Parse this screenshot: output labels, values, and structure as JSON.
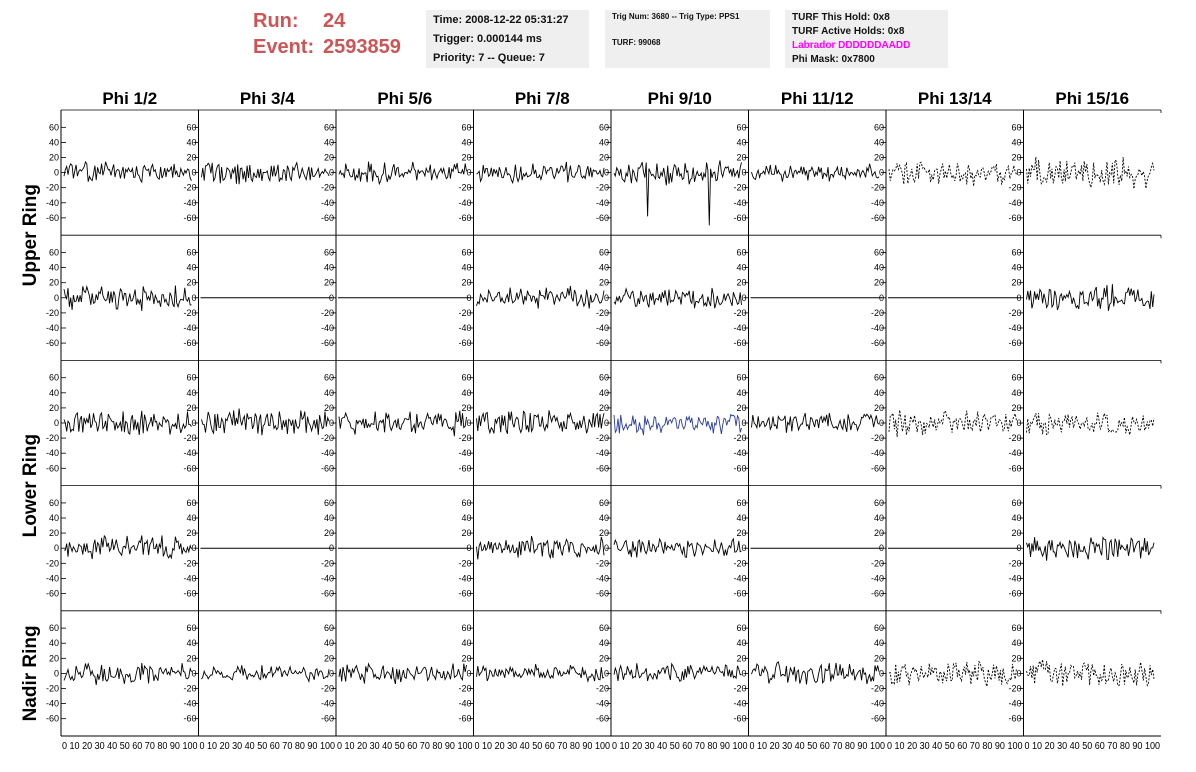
{
  "header": {
    "run_label": "Run:",
    "run_value": "24",
    "event_label": "Event:",
    "event_value": "2593859",
    "time": "Time: 2008-12-22 05:31:27",
    "trigger": "Trigger: 0.000144 ms",
    "priority": "Priority: 7 -- Queue: 7",
    "trig_num": "Trig Num: 3680 -- Trig Type: PPS1",
    "turf": "TURF: 99068",
    "turf_this_hold": "TURF This Hold: 0x8",
    "turf_active_holds": "TURF Active Holds: 0x8",
    "labrador": "Labrador DDDDDDAADD",
    "phi_mask": "Phi Mask: 0x7800"
  },
  "colors": {
    "run": "#cc5555",
    "labrador": "#ff00ff",
    "trace": "#000000",
    "highlight_trace": "#2c3c9a",
    "box": "#efefef"
  },
  "chart_data": {
    "type": "line",
    "columns": [
      "Phi 1/2",
      "Phi 3/4",
      "Phi 5/6",
      "Phi 7/8",
      "Phi 9/10",
      "Phi 11/12",
      "Phi 13/14",
      "Phi 15/16"
    ],
    "ring_labels": [
      "Upper Ring",
      "Lower Ring",
      "Nadir Ring"
    ],
    "ylim": [
      -75,
      75
    ],
    "xlim": [
      0,
      100
    ],
    "y_ticks": [
      -60,
      -40,
      -20,
      0,
      20,
      40,
      60
    ],
    "x_ticks": [
      0,
      10,
      20,
      30,
      40,
      50,
      60,
      70,
      80,
      90,
      100
    ],
    "x_tick_labels_row": "0 10 20 30 40 50 60 70 80 90 100",
    "samples": 96,
    "panels": [
      [
        {
          "type": "noise",
          "amp": 10,
          "seed": 11
        },
        {
          "type": "noise",
          "amp": 11,
          "seed": 12
        },
        {
          "type": "noise",
          "amp": 11,
          "seed": 13
        },
        {
          "type": "noise",
          "amp": 10,
          "seed": 14
        },
        {
          "type": "noise",
          "amp": 13,
          "seed": 15,
          "spikes": [
            [
              26,
              -58
            ],
            [
              74,
              -70
            ]
          ]
        },
        {
          "type": "noise",
          "amp": 9,
          "seed": 16
        },
        {
          "type": "noise",
          "amp": 14,
          "seed": 17,
          "dashed": true
        },
        {
          "type": "noise",
          "amp": 16,
          "seed": 18,
          "dashed": true
        }
      ],
      [
        {
          "type": "noise",
          "amp": 13,
          "seed": 21
        },
        {
          "type": "flat"
        },
        {
          "type": "flat"
        },
        {
          "type": "noise",
          "amp": 11,
          "seed": 24
        },
        {
          "type": "noise",
          "amp": 11,
          "seed": 25
        },
        {
          "type": "flat"
        },
        {
          "type": "flat"
        },
        {
          "type": "noise",
          "amp": 13,
          "seed": 28
        }
      ],
      [
        {
          "type": "noise",
          "amp": 12,
          "seed": 31
        },
        {
          "type": "noise",
          "amp": 13,
          "seed": 32
        },
        {
          "type": "noise",
          "amp": 12,
          "seed": 33
        },
        {
          "type": "noise",
          "amp": 12,
          "seed": 34
        },
        {
          "type": "noise",
          "amp": 11,
          "seed": 35,
          "blue": true
        },
        {
          "type": "noise",
          "amp": 10,
          "seed": 36
        },
        {
          "type": "noise",
          "amp": 14,
          "seed": 37,
          "dashed": true
        },
        {
          "type": "noise",
          "amp": 13,
          "seed": 38,
          "dashed": true
        }
      ],
      [
        {
          "type": "noise",
          "amp": 13,
          "seed": 41
        },
        {
          "type": "flat"
        },
        {
          "type": "flat"
        },
        {
          "type": "noise",
          "amp": 11,
          "seed": 44
        },
        {
          "type": "noise",
          "amp": 10,
          "seed": 45
        },
        {
          "type": "flat"
        },
        {
          "type": "flat"
        },
        {
          "type": "noise",
          "amp": 12,
          "seed": 48
        }
      ],
      [
        {
          "type": "noise",
          "amp": 11,
          "seed": 51
        },
        {
          "type": "noise",
          "amp": 8,
          "seed": 52
        },
        {
          "type": "noise",
          "amp": 10,
          "seed": 53
        },
        {
          "type": "noise",
          "amp": 9,
          "seed": 54
        },
        {
          "type": "noise",
          "amp": 10,
          "seed": 55
        },
        {
          "type": "noise",
          "amp": 11,
          "seed": 56
        },
        {
          "type": "noise",
          "amp": 14,
          "seed": 57,
          "dashed": true
        },
        {
          "type": "noise",
          "amp": 13,
          "seed": 58,
          "dashed": true
        }
      ]
    ]
  }
}
